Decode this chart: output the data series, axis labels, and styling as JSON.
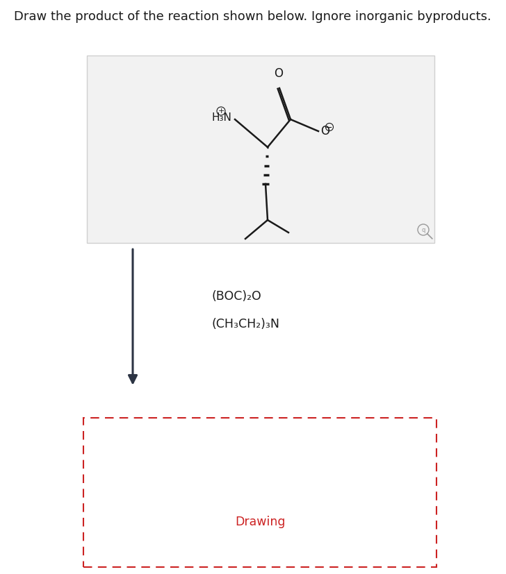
{
  "title": "Draw the product of the reaction shown below. Ignore inorganic byproducts.",
  "title_fontsize": 13,
  "title_color": "#1a1a1a",
  "bg_color": "#ffffff",
  "box1_facecolor": "#f2f2f2",
  "box1_edgecolor": "#d0d0d0",
  "box2_edgecolor": "#cc2222",
  "reagent_line1": "(BOC)₂O",
  "reagent_line2": "(CH₃CH₂)₃N",
  "drawing_text": "Drawing",
  "drawing_text_color": "#cc2222",
  "arrow_color": "#2c3444",
  "mol_color": "#1a1a1a"
}
